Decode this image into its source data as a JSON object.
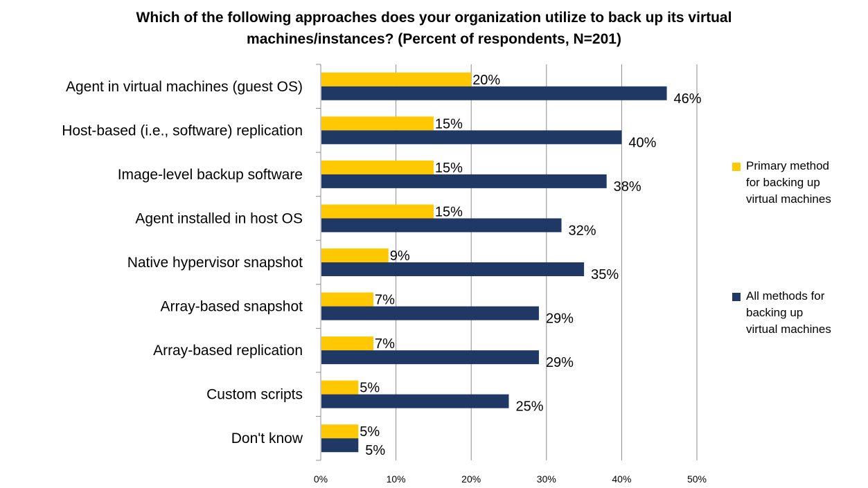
{
  "chart_data": {
    "type": "bar",
    "orientation": "horizontal",
    "title_lines": [
      "Which of the following approaches does your organization utilize to back up its virtual",
      "machines/instances?  (Percent of respondents, N=201)"
    ],
    "categories": [
      "Agent in virtual machines (guest OS)",
      "Host-based (i.e., software) replication",
      "Image-level backup software",
      "Agent installed in host OS",
      "Native hypervisor snapshot",
      "Array-based snapshot",
      "Array-based replication",
      "Custom scripts",
      "Don't know"
    ],
    "series": [
      {
        "name": "Primary method for backing up virtual machines",
        "color": "#FFC800",
        "values": [
          20,
          15,
          15,
          15,
          9,
          7,
          7,
          5,
          5
        ],
        "labels": [
          "20%",
          "15%",
          "15%",
          "15%",
          "9%",
          "7%",
          "7%",
          "5%",
          "5%"
        ]
      },
      {
        "name": "All methods for backing up virtual machines",
        "color": "#1F3864",
        "values": [
          46,
          40,
          38,
          32,
          35,
          29,
          29,
          25,
          5
        ],
        "labels": [
          "46%",
          "40%",
          "38%",
          "32%",
          "35%",
          "29%",
          "29%",
          "25%",
          "5%"
        ]
      }
    ],
    "xlim": [
      0,
      50
    ],
    "xticks": [
      "0%",
      "10%",
      "20%",
      "30%",
      "40%",
      "50%"
    ],
    "grid": "vertical",
    "legend_position": "right",
    "legend_lines": [
      [
        "Primary method",
        "for backing up",
        "virtual machines"
      ],
      [
        "All methods for",
        "backing up",
        "virtual machines"
      ]
    ]
  }
}
